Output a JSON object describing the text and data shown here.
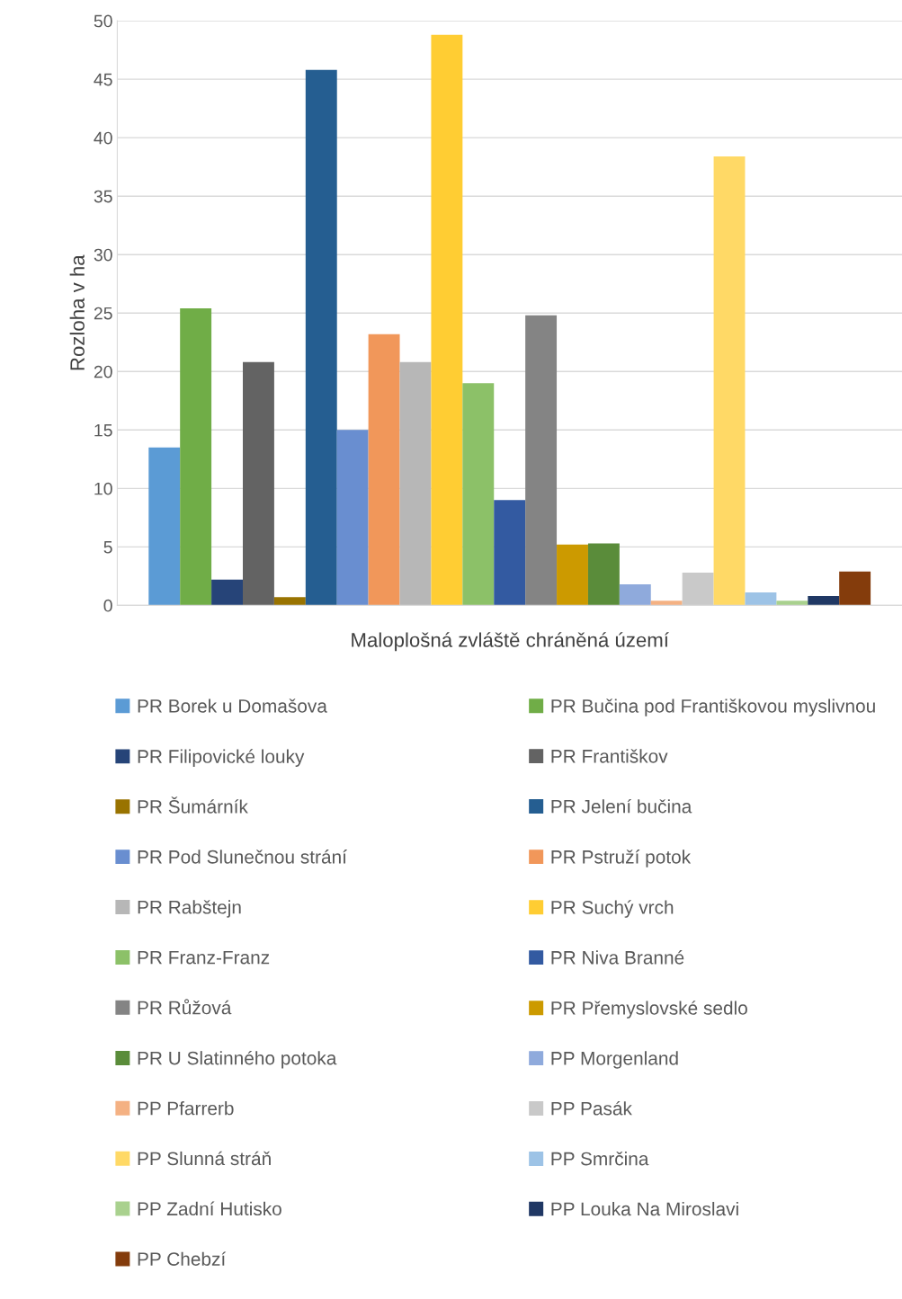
{
  "chart_data": {
    "type": "bar",
    "xlabel": "Maloplošná zvláště chráněná území",
    "ylabel": "Rozloha v ha",
    "categories": [
      null
    ],
    "ylim": [
      0,
      50
    ],
    "yticks": [
      0,
      5,
      10,
      15,
      20,
      25,
      30,
      35,
      40,
      45,
      50
    ],
    "grid": "y",
    "legend": "bottom",
    "series": [
      {
        "name": "PR Borek u Domašova",
        "color": "#5b9bd5",
        "values": [
          13.5
        ]
      },
      {
        "name": "PR Bučina pod Františkovou myslivnou",
        "color": "#70ad47",
        "values": [
          25.4
        ]
      },
      {
        "name": "PR Filipovické louky",
        "color": "#264478",
        "values": [
          2.2
        ]
      },
      {
        "name": "PR Františkov",
        "color": "#636363",
        "values": [
          20.8
        ]
      },
      {
        "name": "PR Šumárník",
        "color": "#997300",
        "values": [
          0.7
        ]
      },
      {
        "name": "PR Jelení bučina",
        "color": "#255e91",
        "values": [
          45.8
        ]
      },
      {
        "name": "PR Pod Slunečnou strání",
        "color": "#698ed0",
        "values": [
          15.0
        ]
      },
      {
        "name": "PR Pstruží potok",
        "color": "#f1975a",
        "values": [
          23.2
        ]
      },
      {
        "name": "PR Rabštejn",
        "color": "#b7b7b7",
        "values": [
          20.8
        ]
      },
      {
        "name": "PR Suchý vrch",
        "color": "#ffcd33",
        "values": [
          48.8
        ]
      },
      {
        "name": "PR Franz-Franz",
        "color": "#8cc168",
        "values": [
          19.0
        ]
      },
      {
        "name": "PR Niva Branné",
        "color": "#335aa1",
        "values": [
          9.0
        ]
      },
      {
        "name": "PR Růžová",
        "color": "#848484",
        "values": [
          24.8
        ]
      },
      {
        "name": "PR Přemyslovské sedlo",
        "color": "#cc9a00",
        "values": [
          5.2
        ]
      },
      {
        "name": "PR U Slatinného potoka",
        "color": "#5a8c3a",
        "values": [
          5.3
        ]
      },
      {
        "name": "PP Morgenland",
        "color": "#8faadc",
        "values": [
          1.8
        ]
      },
      {
        "name": "PP Pfarrerb",
        "color": "#f4b183",
        "values": [
          0.4
        ]
      },
      {
        "name": "PP Pasák",
        "color": "#c9c9c9",
        "values": [
          2.8
        ]
      },
      {
        "name": "PP Slunná stráň",
        "color": "#ffd966",
        "values": [
          38.4
        ]
      },
      {
        "name": "PP Smrčina",
        "color": "#9dc3e6",
        "values": [
          1.1
        ]
      },
      {
        "name": "PP Zadní Hutisko",
        "color": "#a9d18e",
        "values": [
          0.4
        ]
      },
      {
        "name": "PP Louka Na Miroslavi",
        "color": "#203864",
        "values": [
          0.8
        ]
      },
      {
        "name": "PP Chebzí",
        "color": "#843c0c",
        "values": [
          2.9
        ]
      }
    ]
  }
}
